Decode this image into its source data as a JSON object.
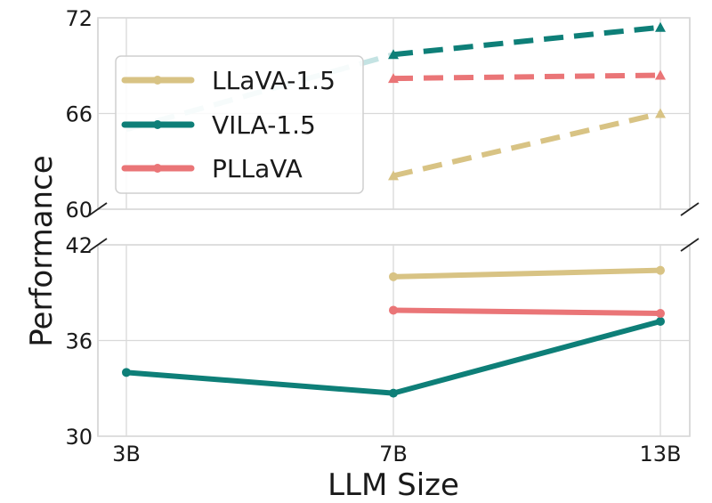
{
  "chart_data": {
    "type": "line",
    "title": "",
    "xlabel": "LLM Size",
    "ylabel": "Performance",
    "categories": [
      "3B",
      "7B",
      "13B"
    ],
    "colors": {
      "LLaVA-1.5": "#d8c384",
      "VILA-1.5": "#0e7f78",
      "PLLaVA": "#ea7577",
      "VILA-1.5-top": "#c4e3e3"
    },
    "panels": [
      {
        "name": "top",
        "ylim": [
          60,
          72
        ],
        "yticks": [
          "60",
          "66",
          "72"
        ],
        "line_style": "dashed",
        "marker": "triangle",
        "series": [
          {
            "name": "LLaVA-1.5",
            "values": [
              null,
              62.1,
              66.0
            ]
          },
          {
            "name": "VILA-1.5",
            "values": [
              65.0,
              69.7,
              71.4
            ]
          },
          {
            "name": "PLLaVA",
            "values": [
              null,
              68.2,
              68.4
            ]
          }
        ]
      },
      {
        "name": "bottom",
        "ylim": [
          30,
          42
        ],
        "yticks": [
          "30",
          "36",
          "42"
        ],
        "line_style": "solid",
        "marker": "circle",
        "series": [
          {
            "name": "LLaVA-1.5",
            "values": [
              null,
              40.0,
              40.4
            ]
          },
          {
            "name": "VILA-1.5",
            "values": [
              34.0,
              32.7,
              37.2
            ]
          },
          {
            "name": "PLLaVA",
            "values": [
              null,
              37.9,
              37.7
            ]
          }
        ]
      }
    ],
    "legend": {
      "placement": "top-left",
      "entries": [
        "LLaVA-1.5",
        "VILA-1.5",
        "PLLaVA"
      ]
    }
  }
}
